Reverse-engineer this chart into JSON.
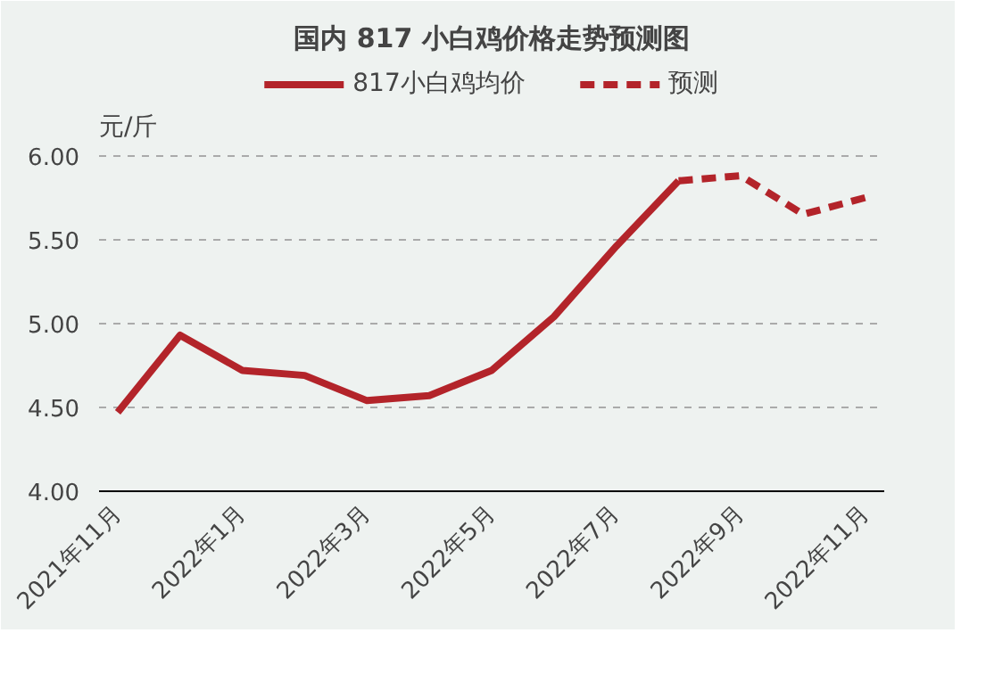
{
  "chart_data": {
    "type": "line",
    "title": "国内 817 小白鸡价格走势预测图",
    "ylabel": "元/斤",
    "categories": [
      "2021年11月",
      null,
      "2022年1月",
      null,
      "2022年3月",
      null,
      "2022年5月",
      null,
      "2022年7月",
      null,
      "2022年9月",
      null,
      "2022年11月"
    ],
    "series": [
      {
        "name": "817小白鸡均价",
        "color": "#b3242a",
        "line_style": "solid",
        "values": [
          4.47,
          4.93,
          4.72,
          4.69,
          4.54,
          4.57,
          4.72,
          5.04,
          5.46,
          5.85,
          null,
          null,
          null
        ]
      },
      {
        "name": "预测",
        "color": "#b3242a",
        "line_style": "dashed",
        "values": [
          null,
          null,
          null,
          null,
          null,
          null,
          null,
          null,
          null,
          5.85,
          5.88,
          5.65,
          5.75
        ]
      }
    ],
    "ylim": [
      4.0,
      6.55
    ],
    "yticks": [
      {
        "value": 4.0,
        "label": "4.00"
      },
      {
        "value": 4.5,
        "label": "4.50"
      },
      {
        "value": 5.0,
        "label": "5.00"
      },
      {
        "value": 5.5,
        "label": "5.50"
      },
      {
        "value": 6.0,
        "label": "6.00"
      }
    ],
    "grid": "y",
    "legend": "top",
    "marker": "none"
  }
}
